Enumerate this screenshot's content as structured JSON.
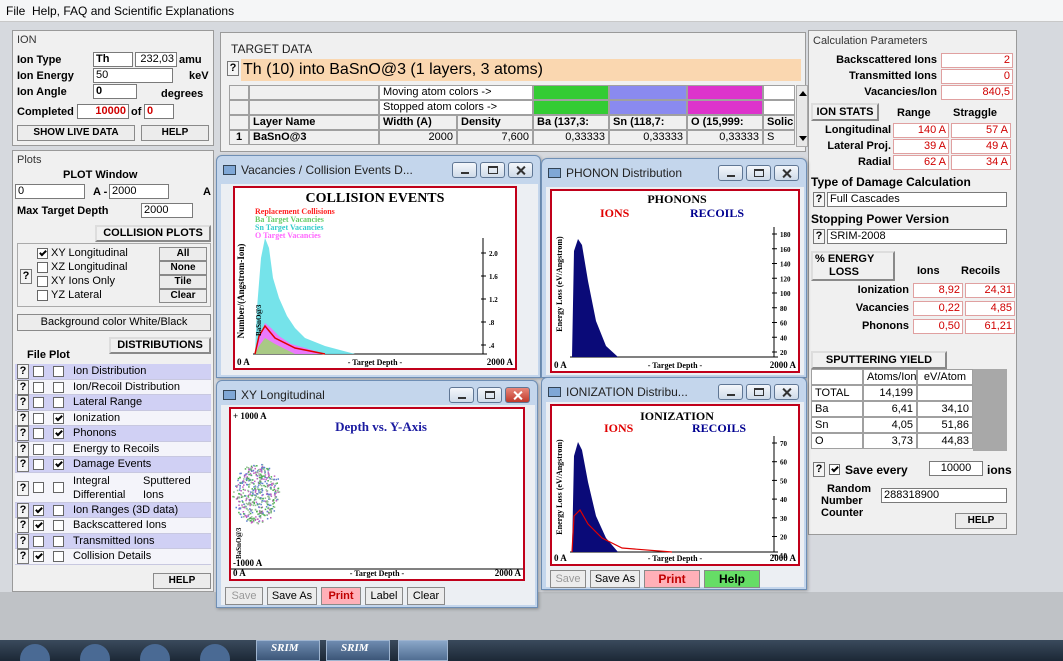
{
  "menu": [
    "File",
    "Help, FAQ and Scientific Explanations"
  ],
  "ion": {
    "title": "ION",
    "type_label": "Ion Type",
    "type": "Th",
    "mass": "232,03",
    "mass_unit": "amu",
    "energy_label": "Ion Energy",
    "energy": "50",
    "energy_unit": "keV",
    "angle_label": "Ion Angle",
    "angle": "0",
    "angle_unit": "degrees",
    "completed_label": "Completed",
    "completed": "10000",
    "of": "of",
    "total": "0",
    "buttons": [
      "SHOW LIVE DATA",
      "HELP"
    ]
  },
  "plots": {
    "title": "Plots",
    "window_title": "PLOT Window",
    "from": "0",
    "dash": "A -",
    "to": "2000",
    "unit": "A",
    "max_label": "Max Target Depth",
    "max": "2000",
    "collision_title": "COLLISION PLOTS",
    "help": "?",
    "options": [
      "XY Longitudinal",
      "XZ Longitudinal",
      "XY Ions Only",
      "YZ Lateral"
    ],
    "checked": [
      true,
      false,
      false,
      false
    ],
    "buttons": [
      "All",
      "None",
      "Tile",
      "Clear"
    ],
    "background": "Background color White/Black",
    "dist_title": "DISTRIBUTIONS",
    "file": "File",
    "plot": "Plot",
    "items": [
      {
        "label": "Ion Distribution",
        "file": false,
        "plot": false
      },
      {
        "label": "Ion/Recoil Distribution",
        "file": false,
        "plot": false
      },
      {
        "label": "Lateral Range",
        "file": false,
        "plot": false
      },
      {
        "label": "Ionization",
        "file": false,
        "plot": true
      },
      {
        "label": "Phonons",
        "file": false,
        "plot": true
      },
      {
        "label": "Energy to Recoils",
        "file": false,
        "plot": false
      },
      {
        "label": "Damage Events",
        "file": false,
        "plot": true
      },
      {
        "lines": [
          [
            "Integral",
            "Sputtered"
          ],
          [
            "Differential",
            "Ions"
          ]
        ],
        "file": false,
        "plot": false
      },
      {
        "label": "Ion Ranges (3D data)",
        "file": true,
        "plot": false
      },
      {
        "label": "Backscattered Ions",
        "file": true,
        "plot": false
      },
      {
        "label": "Transmitted Ions",
        "file": false,
        "plot": false
      },
      {
        "label": "Collision Details",
        "file": true,
        "plot": false
      }
    ],
    "help_button": "HELP"
  },
  "target": {
    "title": "TARGET DATA",
    "help": "?",
    "heading": "Th (10) into BaSnO@3 (1 layers, 3 atoms)",
    "moving": "Moving atom colors ->",
    "stopped": "Stopped atom colors ->",
    "headers": [
      "Layer Name",
      "Width (A)",
      "Density",
      "Ba (137,3:",
      "Sn (118,7:",
      "O (15,999:",
      "Solic"
    ],
    "row": [
      "1",
      "BaSnO@3",
      "2000",
      "7,600",
      "0,33333",
      "0,33333",
      "0,33333",
      "S"
    ]
  },
  "calc": {
    "title": "Calculation Parameters",
    "rows": [
      [
        "Backscattered Ions",
        "2"
      ],
      [
        "Transmitted Ions",
        "0"
      ],
      [
        "Vacancies/Ion",
        "840,5"
      ]
    ],
    "stats_title": "ION STATS",
    "stats_cols": [
      "Range",
      "Straggle"
    ],
    "stats": [
      [
        "Longitudinal",
        "140 A",
        "57 A"
      ],
      [
        "Lateral Proj.",
        "39 A",
        "49 A"
      ],
      [
        "Radial",
        "62 A",
        "34 A"
      ]
    ],
    "help": "?",
    "damage_title": "Type of Damage Calculation",
    "damage": "Full Cascades",
    "stopping_title": "Stopping Power Version",
    "stopping": "SRIM-2008",
    "energy_title": [
      "% ENERGY",
      "LOSS"
    ],
    "energy_cols": [
      "Ions",
      "Recoils"
    ],
    "energy": [
      [
        "Ionization",
        "8,92",
        "24,31"
      ],
      [
        "Vacancies",
        "0,22",
        "4,85"
      ],
      [
        "Phonons",
        "0,50",
        "61,21"
      ]
    ],
    "sputter_title": "SPUTTERING YIELD",
    "sputter_cols": [
      "Atoms/Ion",
      "eV/Atom"
    ],
    "sputter": [
      [
        "TOTAL",
        "14,199"
      ],
      [
        "Ba",
        "6,41",
        "34,10"
      ],
      [
        "Sn",
        "4,05",
        "51,86"
      ],
      [
        "O",
        "3,73",
        "44,83"
      ]
    ],
    "save_checked": true,
    "save_label": "Save every",
    "save_value": "10000",
    "save_unit": "ions",
    "random_label": [
      "Random",
      "Number",
      "Counter"
    ],
    "random_value": "288318900",
    "help_button": "HELP"
  },
  "windows": [
    {
      "title": "Vacancies / Collision Events D...",
      "chart_title": "COLLISION EVENTS",
      "legend": [
        "Replacement Collisions",
        "Ba Target Vacancies",
        "Sn Target Vacancies",
        "O Target Vacancies"
      ],
      "y_label": "Number/(Angstrom-Ion)",
      "yticks": [
        "2.0",
        "1.6",
        "1.2",
        ".8",
        ".4"
      ],
      "layer_tag": "BaSnO@3",
      "x_start": "0 A",
      "x_label": "- Target Depth -",
      "x_end": "2000 A"
    },
    {
      "title": "PHONON Distribution",
      "chart_title": "PHONONS",
      "series": [
        "IONS",
        "RECOILS"
      ],
      "y_label": "Energy Loss (eV/Angstrom)",
      "yticks": [
        "180",
        "160",
        "140",
        "120",
        "100",
        "80",
        "60",
        "40",
        "20"
      ],
      "x_start": "0 A",
      "x_label": "- Target Depth -",
      "x_end": "2000 A"
    },
    {
      "title": "XY Longitudinal",
      "chart_title": "Depth vs. Y-Axis",
      "y_top": "+ 1000 A",
      "y_bottom": "-1000 A",
      "layer_tag": "BaSnO@3",
      "x_start": "0 A",
      "x_label": "- Target Depth -",
      "x_end": "2000 A",
      "buttons": [
        "Save",
        "Save As",
        "Print",
        "Label",
        "Clear"
      ]
    },
    {
      "title": "IONIZATION Distribu...",
      "chart_title": "IONIZATION",
      "series": [
        "IONS",
        "RECOILS"
      ],
      "y_label": "Energy Loss (eV/Angstrom)",
      "yticks": [
        "70",
        "60",
        "50",
        "40",
        "30",
        "20",
        "10"
      ],
      "x_start": "0 A",
      "x_label": "- Target Depth -",
      "x_end": "2000 A",
      "buttons": [
        "Save",
        "Save As",
        "Print",
        "Help"
      ]
    }
  ],
  "taskbar": [
    "SRIM",
    "SRIM"
  ]
}
